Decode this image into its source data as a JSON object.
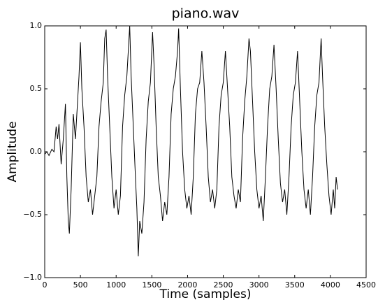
{
  "chart_data": {
    "type": "line",
    "title": "piano.wav",
    "xlabel": "Time (samples)",
    "ylabel": "Amplitude",
    "x": [
      0,
      30,
      60,
      100,
      130,
      160,
      180,
      200,
      230,
      260,
      290,
      310,
      330,
      345,
      370,
      400,
      430,
      460,
      480,
      500,
      520,
      550,
      580,
      610,
      640,
      670,
      700,
      730,
      760,
      790,
      820,
      840,
      860,
      880,
      910,
      940,
      970,
      1000,
      1030,
      1060,
      1090,
      1120,
      1150,
      1180,
      1190,
      1210,
      1240,
      1270,
      1290,
      1310,
      1330,
      1360,
      1390,
      1420,
      1450,
      1480,
      1510,
      1530,
      1560,
      1590,
      1620,
      1650,
      1680,
      1710,
      1740,
      1770,
      1800,
      1830,
      1860,
      1875,
      1900,
      1930,
      1960,
      1990,
      2020,
      2050,
      2080,
      2110,
      2140,
      2170,
      2200,
      2230,
      2260,
      2290,
      2320,
      2350,
      2380,
      2410,
      2440,
      2470,
      2500,
      2530,
      2560,
      2590,
      2620,
      2650,
      2680,
      2710,
      2740,
      2770,
      2800,
      2830,
      2860,
      2880,
      2910,
      2940,
      2970,
      3000,
      3030,
      3060,
      3090,
      3120,
      3150,
      3180,
      3210,
      3240,
      3270,
      3300,
      3330,
      3360,
      3390,
      3420,
      3450,
      3480,
      3510,
      3540,
      3570,
      3600,
      3630,
      3660,
      3690,
      3720,
      3750,
      3780,
      3810,
      3840,
      3870,
      3890,
      3920,
      3950,
      3980,
      4010,
      4040,
      4060,
      4080,
      4100
    ],
    "series": [
      {
        "color": "#000000",
        "values": [
          -0.02,
          0.0,
          -0.03,
          0.02,
          0.0,
          0.2,
          0.1,
          0.22,
          -0.1,
          0.1,
          0.38,
          -0.2,
          -0.55,
          -0.65,
          -0.3,
          0.3,
          0.1,
          0.4,
          0.6,
          0.87,
          0.5,
          0.2,
          -0.2,
          -0.4,
          -0.3,
          -0.5,
          -0.35,
          -0.2,
          0.2,
          0.4,
          0.55,
          0.9,
          0.97,
          0.6,
          0.2,
          -0.2,
          -0.45,
          -0.3,
          -0.5,
          -0.35,
          0.2,
          0.45,
          0.6,
          0.9,
          1.0,
          0.6,
          0.2,
          -0.2,
          -0.45,
          -0.83,
          -0.55,
          -0.65,
          -0.4,
          0.1,
          0.4,
          0.55,
          0.95,
          0.7,
          0.2,
          -0.2,
          -0.35,
          -0.55,
          -0.4,
          -0.5,
          -0.2,
          0.3,
          0.5,
          0.6,
          0.8,
          0.98,
          0.5,
          0.0,
          -0.3,
          -0.45,
          -0.35,
          -0.5,
          -0.2,
          0.3,
          0.5,
          0.55,
          0.8,
          0.55,
          0.2,
          -0.2,
          -0.4,
          -0.3,
          -0.45,
          -0.3,
          0.2,
          0.45,
          0.55,
          0.8,
          0.5,
          0.2,
          -0.2,
          -0.35,
          -0.45,
          -0.3,
          -0.4,
          0.1,
          0.4,
          0.6,
          0.9,
          0.8,
          0.4,
          0.0,
          -0.3,
          -0.45,
          -0.35,
          -0.55,
          -0.2,
          0.2,
          0.5,
          0.6,
          0.85,
          0.5,
          0.1,
          -0.25,
          -0.4,
          -0.3,
          -0.5,
          -0.2,
          0.2,
          0.45,
          0.55,
          0.8,
          0.4,
          0.0,
          -0.3,
          -0.45,
          -0.3,
          -0.5,
          -0.2,
          0.2,
          0.45,
          0.55,
          0.9,
          0.6,
          0.2,
          -0.1,
          -0.35,
          -0.5,
          -0.3,
          -0.45,
          -0.2,
          -0.3
        ]
      }
    ],
    "xlim": [
      0,
      4500
    ],
    "xticks": [
      0,
      500,
      1000,
      1500,
      2000,
      2500,
      3000,
      3500,
      4000,
      4500
    ],
    "ylim": [
      -1,
      1
    ],
    "yticks": [
      {
        "value": -1,
        "label": "−1.0"
      },
      {
        "value": -0.5,
        "label": "−0.5"
      },
      {
        "value": 0,
        "label": "0.0"
      },
      0.5,
      {
        "value": 1,
        "label": "1.0"
      }
    ]
  }
}
